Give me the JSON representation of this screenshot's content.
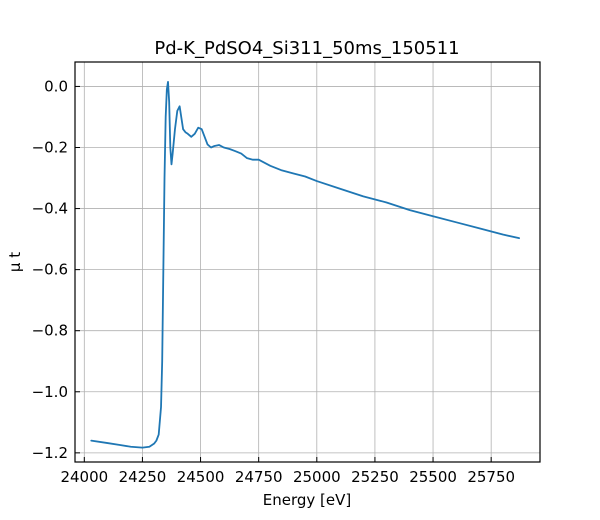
{
  "chart_data": {
    "type": "line",
    "title": "Pd-K_PdSO4_Si311_50ms_150511",
    "xlabel": "Energy [eV]",
    "ylabel": "μ t",
    "xlim": [
      23960,
      25960
    ],
    "ylim": [
      -1.23,
      0.08
    ],
    "grid": true,
    "xticks": [
      24000,
      24250,
      24500,
      24750,
      25000,
      25250,
      25500,
      25750
    ],
    "yticks": [
      0.0,
      -0.2,
      -0.4,
      -0.6,
      -0.8,
      -1.0,
      -1.2
    ],
    "xtick_labels": [
      "24000",
      "24250",
      "24500",
      "24750",
      "25000",
      "25250",
      "25500",
      "25750"
    ],
    "ytick_labels": [
      "0.0",
      "−0.2",
      "−0.4",
      "−0.6",
      "−0.8",
      "−1.0",
      "−1.2"
    ],
    "series": [
      {
        "color": "#1f77b4",
        "x": [
          24030,
          24100,
          24150,
          24200,
          24250,
          24280,
          24300,
          24310,
          24320,
          24330,
          24335,
          24340,
          24345,
          24350,
          24355,
          24360,
          24365,
          24370,
          24375,
          24380,
          24385,
          24390,
          24400,
          24410,
          24417,
          24425,
          24435,
          24445,
          24460,
          24475,
          24490,
          24505,
          24515,
          24530,
          24545,
          24560,
          24580,
          24600,
          24625,
          24650,
          24675,
          24700,
          24725,
          24750,
          24800,
          24850,
          24900,
          24950,
          25000,
          25100,
          25200,
          25300,
          25400,
          25500,
          25600,
          25700,
          25800,
          25870
        ],
        "y": [
          -1.16,
          -1.168,
          -1.174,
          -1.18,
          -1.183,
          -1.18,
          -1.17,
          -1.16,
          -1.14,
          -1.05,
          -0.9,
          -0.6,
          -0.3,
          -0.1,
          -0.01,
          0.015,
          -0.05,
          -0.2,
          -0.255,
          -0.22,
          -0.18,
          -0.14,
          -0.08,
          -0.065,
          -0.1,
          -0.14,
          -0.15,
          -0.155,
          -0.165,
          -0.155,
          -0.135,
          -0.14,
          -0.16,
          -0.19,
          -0.2,
          -0.195,
          -0.192,
          -0.2,
          -0.205,
          -0.212,
          -0.22,
          -0.235,
          -0.24,
          -0.24,
          -0.26,
          -0.275,
          -0.285,
          -0.295,
          -0.31,
          -0.335,
          -0.36,
          -0.38,
          -0.405,
          -0.425,
          -0.445,
          -0.465,
          -0.485,
          -0.497
        ]
      }
    ]
  }
}
